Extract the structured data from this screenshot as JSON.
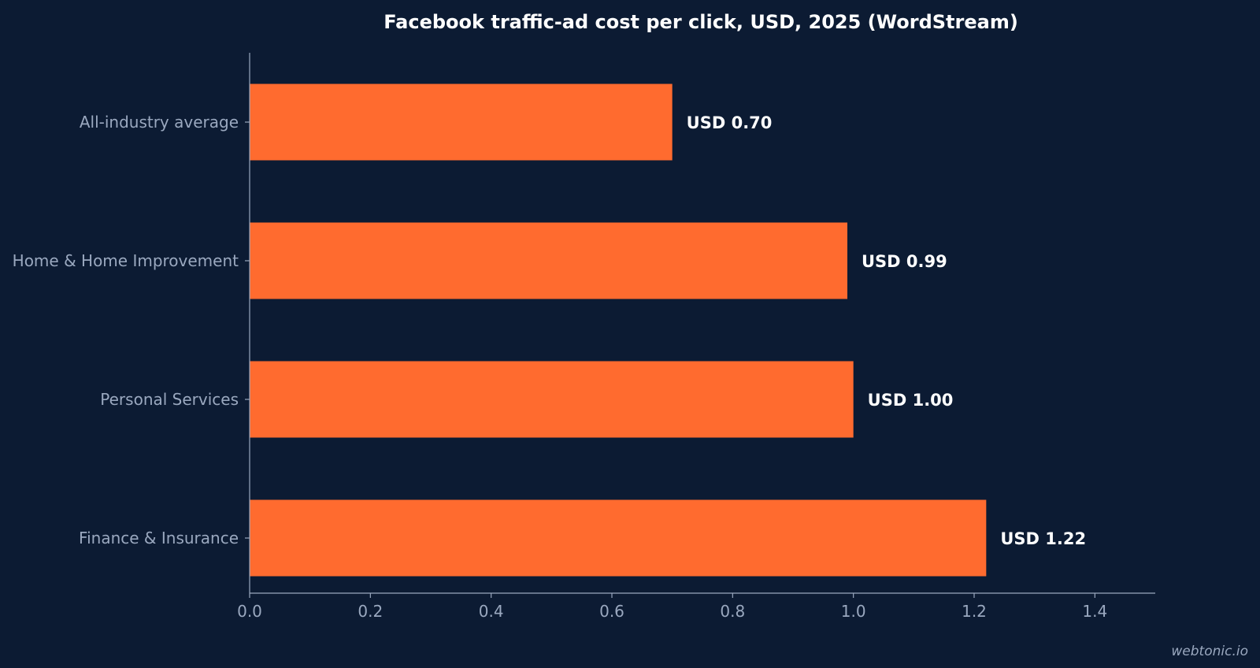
{
  "chart_data": {
    "type": "bar",
    "orientation": "horizontal",
    "title": "Facebook traffic-ad cost per click, USD, 2025 (WordStream)",
    "xlabel": "",
    "ylabel": "",
    "categories": [
      "All-industry average",
      "Home & Home Improvement",
      "Personal Services",
      "Finance & Insurance"
    ],
    "values": [
      0.7,
      0.99,
      1.0,
      1.22
    ],
    "data_labels": [
      "USD 0.70",
      "USD 0.99",
      "USD 1.00",
      "USD 1.22"
    ],
    "xlim": [
      0,
      1.5
    ],
    "xticks": [
      0.0,
      0.2,
      0.4,
      0.6,
      0.8,
      1.0,
      1.2,
      1.4
    ],
    "xtick_labels": [
      "0.0",
      "0.2",
      "0.4",
      "0.6",
      "0.8",
      "1.0",
      "1.2",
      "1.4"
    ],
    "grid": false,
    "legend": "none",
    "colors": {
      "background": "#0c1b33",
      "bar": "#ff6b2f",
      "axis": "#9aa8bf",
      "text_muted": "#9aa8bf",
      "text_strong": "#ffffff"
    }
  },
  "footer": {
    "watermark": "webtonic.io"
  }
}
